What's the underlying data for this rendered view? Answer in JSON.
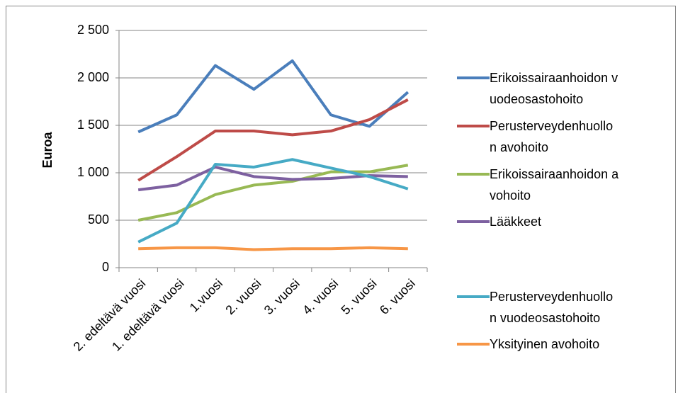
{
  "chart_data": {
    "type": "line",
    "y_label": "Euroa",
    "categories": [
      "2. edeltävä vuosi",
      "1. edeltävä vuosi",
      "1.vuosi",
      "2. vuosi",
      "3. vuosi",
      "4. vuosi",
      "5. vuosi",
      "6. vuosi"
    ],
    "series": [
      {
        "name": "Erikoissairaanhoidon vuodeosastohoito",
        "color": "#4a7ebb",
        "values": [
          1430,
          1610,
          2130,
          1880,
          2180,
          1610,
          1490,
          1850
        ]
      },
      {
        "name": "Perusterveydenhuollon avohoito",
        "color": "#be4b48",
        "values": [
          920,
          1170,
          1440,
          1440,
          1400,
          1440,
          1560,
          1770
        ]
      },
      {
        "name": "Erikoissairaanhoidon avohoito",
        "color": "#98b954",
        "values": [
          500,
          580,
          770,
          870,
          910,
          1010,
          1010,
          1080
        ]
      },
      {
        "name": "Lääkkeet",
        "color": "#7d60a0",
        "values": [
          820,
          870,
          1060,
          960,
          930,
          940,
          970,
          960
        ]
      },
      {
        "name": "Perusterveydenhuollon vuodeosastohoito",
        "color": "#46aac5",
        "values": [
          270,
          470,
          1090,
          1060,
          1140,
          1050,
          960,
          830
        ]
      },
      {
        "name": "Yksityinen avohoito",
        "color": "#f79646",
        "values": [
          200,
          210,
          210,
          190,
          200,
          200,
          210,
          200
        ]
      }
    ],
    "ylim": [
      0,
      2500
    ],
    "yticks": [
      0,
      500,
      {
        "value": 1000,
        "label": "1 000"
      },
      {
        "value": 1500,
        "label": "1 500"
      },
      {
        "value": 2000,
        "label": "2 000"
      },
      {
        "value": 2500,
        "label": "2 500"
      }
    ],
    "grid": true
  }
}
